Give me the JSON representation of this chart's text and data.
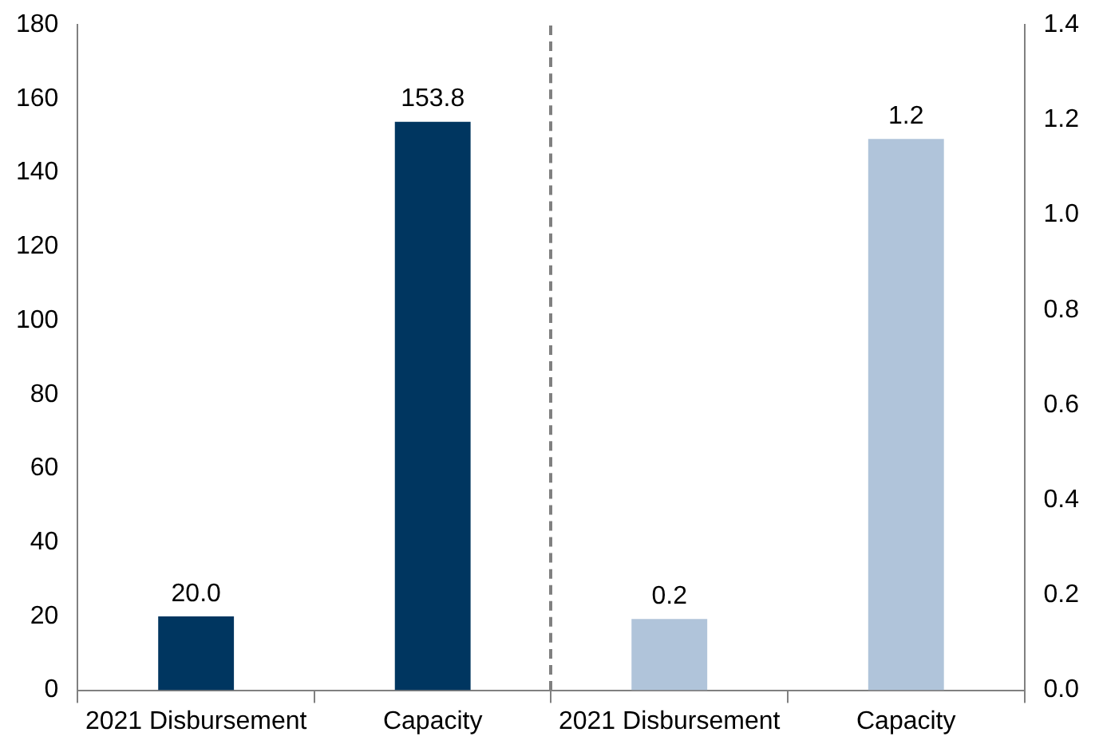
{
  "chart_data": {
    "type": "bar",
    "categories": [
      "2021 Disbursement",
      "Capacity",
      "2021 Disbursement",
      "Capacity"
    ],
    "series": [
      {
        "color": "#003660",
        "values": [
          20.0,
          153.8,
          null,
          null
        ],
        "value_labels": [
          "20.0",
          "153.8",
          null,
          null
        ]
      },
      {
        "color": "#b0c4da",
        "values": [
          null,
          null,
          0.15,
          1.16
        ],
        "value_labels": [
          null,
          null,
          "0.2",
          "1.2"
        ],
        "axis": "y2"
      }
    ],
    "ylim": [
      0,
      180
    ],
    "yticks": [
      0,
      20,
      40,
      60,
      80,
      100,
      120,
      140,
      160,
      180
    ],
    "y2lim": [
      0,
      1.4
    ],
    "y2ticks": [
      {
        "value": 0,
        "label": "0.0"
      },
      {
        "value": 0.2,
        "label": "0.2"
      },
      {
        "value": 0.4,
        "label": "0.4"
      },
      {
        "value": 0.6,
        "label": "0.6"
      },
      {
        "value": 0.8,
        "label": "0.8"
      },
      {
        "value": 1.0,
        "label": "1.0"
      },
      {
        "value": 1.2,
        "label": "1.2"
      },
      {
        "value": 1.4,
        "label": "1.4"
      }
    ],
    "grid": false,
    "legend": false
  }
}
